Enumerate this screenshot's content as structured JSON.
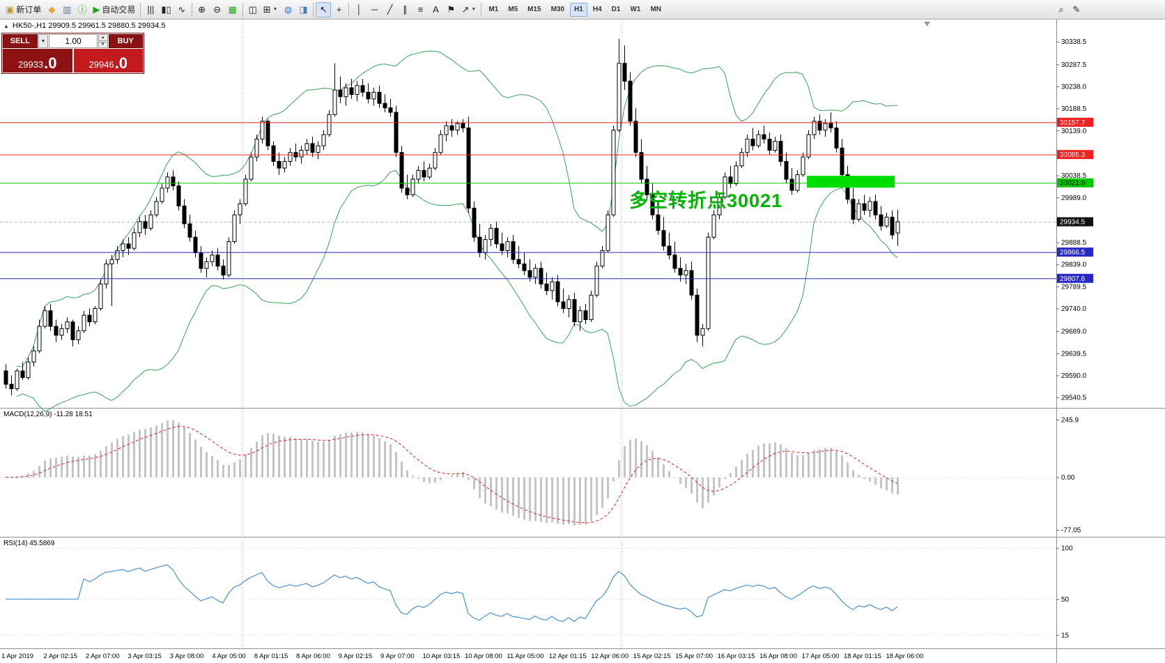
{
  "chart_header": {
    "symbol_info": "HK50-,H1 29909.5 29961.5 29880.5 29934.5"
  },
  "icons": {
    "panel_toggle": "▲",
    "dropdown": "▼",
    "spin_up": "▲",
    "spin_down": "▼"
  },
  "toolbar": {
    "items": [
      {
        "name": "new-order",
        "glyph": "▣",
        "color": "#c09433",
        "label": "新订单"
      },
      {
        "name": "favorites",
        "glyph": "◆",
        "color": "#e2a33a"
      },
      {
        "name": "market-watch",
        "glyph": "▥",
        "color": "#4a7ebb"
      },
      {
        "name": "data-window",
        "glyph": "ⓘ",
        "color": "#2e9e2e"
      },
      {
        "name": "autotrading",
        "glyph": "▶",
        "color": "#23a123",
        "label": "自动交易"
      },
      {
        "sep": true
      },
      {
        "name": "bar-chart",
        "glyph": "|||"
      },
      {
        "name": "candlestick-chart",
        "glyph": "▮▯"
      },
      {
        "name": "line-chart",
        "glyph": "∿"
      },
      {
        "sep": true
      },
      {
        "name": "zoom-in",
        "glyph": "⊕"
      },
      {
        "name": "zoom-out",
        "glyph": "⊖"
      },
      {
        "name": "auto-arrange",
        "glyph": "▦",
        "color": "#2e9e2e"
      },
      {
        "sep": true
      },
      {
        "name": "tile-windows",
        "glyph": "◫"
      },
      {
        "name": "new-chart",
        "glyph": "⊞",
        "arrow": true
      },
      {
        "name": "navigator",
        "glyph": "◍",
        "color": "#4a7ebb"
      },
      {
        "name": "terminal",
        "glyph": "◨",
        "color": "#4a7ebb"
      },
      {
        "sep": true
      },
      {
        "name": "cursor",
        "glyph": "↖",
        "active": true
      },
      {
        "name": "crosshair",
        "glyph": "+"
      },
      {
        "sep": true
      },
      {
        "name": "vertical-line",
        "glyph": "│"
      },
      {
        "name": "horizontal-line",
        "glyph": "─"
      },
      {
        "name": "trendline",
        "glyph": "╱"
      },
      {
        "name": "equidistant-channel",
        "glyph": "∥"
      },
      {
        "name": "fibonacci",
        "glyph": "≡"
      },
      {
        "name": "text",
        "glyph": "A"
      },
      {
        "name": "text-label",
        "glyph": "⚑"
      },
      {
        "name": "arrows",
        "glyph": "↗",
        "arrow": true
      },
      {
        "sep": true
      },
      {
        "tf": true
      },
      {
        "spacer": true
      },
      {
        "name": "search",
        "glyph": "⌕"
      },
      {
        "name": "edit",
        "glyph": "✎"
      }
    ],
    "timeframes": [
      "M1",
      "M5",
      "M15",
      "M30",
      "H1",
      "H4",
      "D1",
      "W1",
      "MN"
    ],
    "active_timeframe": "H1"
  },
  "trade_panel": {
    "sell_label": "SELL",
    "buy_label": "BUY",
    "volume": "1.00",
    "sell_price_main": "29933",
    "sell_price_frac": ".0",
    "buy_price_main": "29946",
    "buy_price_frac": ".0"
  },
  "annotation": {
    "text": "多空转折点30021",
    "color": "#00b400"
  },
  "indicators": {
    "macd": {
      "label": "MACD(12,26,9) -11.28 18.51",
      "axis_labels": [
        "245.9",
        "0.00",
        "-77.05"
      ],
      "params": {
        "fast": 12,
        "slow": 26,
        "signal": 9
      }
    },
    "rsi": {
      "label": "RSI(14) 45.5869",
      "period": 14,
      "axis_labels": [
        {
          "value": 100,
          "text": "100"
        },
        {
          "value": 50,
          "text": "50"
        },
        {
          "value": 15,
          "text": "15"
        }
      ]
    }
  },
  "colors": {
    "bull": "#ffffff",
    "bear": "#000000",
    "wick": "#000000",
    "bollinger": "#3aa05a",
    "macd_hist": "#c4c4c4",
    "macd_signal": "#e02020",
    "rsi_line": "#4a90d2",
    "current_price_badge": "#111111",
    "zone_green": "#00dd00",
    "annotation_green": "#00b400"
  },
  "chart_data": {
    "type": "candlestick",
    "symbol": "HK50-",
    "timeframe": "H1",
    "last_ohlc": {
      "open": 29909.5,
      "high": 29961.5,
      "low": 29880.5,
      "close": 29934.5
    },
    "current_price": 29934.5,
    "price_range": {
      "max": 30360,
      "min": 29525
    },
    "price_ticks": [
      30338.5,
      30287.5,
      30238.0,
      30188.5,
      30139.0,
      30038.5,
      29989.0,
      29888.5,
      29839.0,
      29789.5,
      29740.0,
      29689.0,
      29639.5,
      29590.0,
      29540.5
    ],
    "hlines": [
      {
        "price": 30157.7,
        "label": "30157.7",
        "color": "#f02020",
        "badge_text": "light"
      },
      {
        "price": 30085.3,
        "label": "30085.3",
        "color": "#f02020",
        "badge_text": "light"
      },
      {
        "price": 30021.9,
        "label": "30021.9",
        "color": "#00c800",
        "badge_text": "dark"
      },
      {
        "price": 29866.5,
        "label": "29866.5",
        "color": "#2828c8",
        "badge_text": "light"
      },
      {
        "price": 29807.6,
        "label": "29807.6",
        "color": "#2828c8",
        "badge_text": "light"
      }
    ],
    "green_zone": {
      "price": 30021.9,
      "from_index": 144,
      "to_index": 159
    },
    "period_separators": [
      42.5,
      110.5
    ],
    "bollinger": {
      "period": 20,
      "deviation": 2
    },
    "time_labels": [
      "1 Apr 2019",
      "2 Apr 02:15",
      "2 Apr 07:00",
      "3 Apr 03:15",
      "3 Apr 08:00",
      "4 Apr 05:00",
      "8 Apr 01:15",
      "8 Apr 06:00",
      "9 Apr 02:15",
      "9 Apr 07:00",
      "10 Apr 03:15",
      "10 Apr 08:00",
      "11 Apr 05:00",
      "12 Apr 01:15",
      "12 Apr 06:00",
      "15 Apr 02:15",
      "15 Apr 07:00",
      "16 Apr 03:15",
      "16 Apr 08:00",
      "17 Apr 05:00",
      "18 Apr 01:15",
      "18 Apr 06:00"
    ],
    "candles": [
      [
        29600,
        29615,
        29560,
        29570
      ],
      [
        29570,
        29590,
        29545,
        29560
      ],
      [
        29560,
        29605,
        29555,
        29600
      ],
      [
        29600,
        29620,
        29580,
        29585
      ],
      [
        29585,
        29630,
        29580,
        29620
      ],
      [
        29620,
        29655,
        29610,
        29645
      ],
      [
        29645,
        29715,
        29640,
        29700
      ],
      [
        29700,
        29745,
        29695,
        29735
      ],
      [
        29735,
        29750,
        29690,
        29700
      ],
      [
        29700,
        29715,
        29665,
        29680
      ],
      [
        29680,
        29705,
        29670,
        29695
      ],
      [
        29695,
        29720,
        29685,
        29710
      ],
      [
        29710,
        29715,
        29655,
        29670
      ],
      [
        29670,
        29700,
        29660,
        29690
      ],
      [
        29690,
        29735,
        29685,
        29725
      ],
      [
        29725,
        29740,
        29700,
        29710
      ],
      [
        29710,
        29745,
        29705,
        29740
      ],
      [
        29740,
        29805,
        29735,
        29795
      ],
      [
        29795,
        29850,
        29785,
        29840
      ],
      [
        29840,
        29860,
        29745,
        29850
      ],
      [
        29850,
        29880,
        29840,
        29870
      ],
      [
        29870,
        29895,
        29855,
        29885
      ],
      [
        29885,
        29900,
        29860,
        29875
      ],
      [
        29875,
        29920,
        29870,
        29910
      ],
      [
        29910,
        29945,
        29900,
        29935
      ],
      [
        29935,
        29950,
        29905,
        29920
      ],
      [
        29920,
        29960,
        29915,
        29950
      ],
      [
        29950,
        29990,
        29945,
        29980
      ],
      [
        29980,
        30020,
        29975,
        30010
      ],
      [
        30010,
        30045,
        30000,
        30035
      ],
      [
        30035,
        30050,
        30005,
        30015
      ],
      [
        30015,
        30025,
        29960,
        29970
      ],
      [
        29970,
        29985,
        29920,
        29930
      ],
      [
        29930,
        29950,
        29890,
        29900
      ],
      [
        29900,
        29915,
        29855,
        29865
      ],
      [
        29865,
        29880,
        29820,
        29830
      ],
      [
        29830,
        29855,
        29810,
        29845
      ],
      [
        29845,
        29870,
        29835,
        29860
      ],
      [
        29860,
        29875,
        29825,
        29835
      ],
      [
        29835,
        29850,
        29805,
        29815
      ],
      [
        29815,
        29900,
        29810,
        29890
      ],
      [
        29890,
        29960,
        29885,
        29950
      ],
      [
        29950,
        29985,
        29930,
        29975
      ],
      [
        29975,
        30040,
        29970,
        30030
      ],
      [
        30030,
        30090,
        30025,
        30080
      ],
      [
        30080,
        30130,
        30070,
        30120
      ],
      [
        30120,
        30170,
        30110,
        30160
      ],
      [
        30160,
        30165,
        30095,
        30105
      ],
      [
        30105,
        30115,
        30060,
        30070
      ],
      [
        30070,
        30090,
        30040,
        30055
      ],
      [
        30055,
        30080,
        30045,
        30070
      ],
      [
        30070,
        30100,
        30060,
        30090
      ],
      [
        30090,
        30110,
        30070,
        30080
      ],
      [
        30080,
        30105,
        30065,
        30095
      ],
      [
        30095,
        30120,
        30085,
        30110
      ],
      [
        30110,
        30125,
        30080,
        30090
      ],
      [
        30090,
        30115,
        30075,
        30105
      ],
      [
        30105,
        30140,
        30095,
        30130
      ],
      [
        30130,
        30185,
        30125,
        30175
      ],
      [
        30175,
        30290,
        30170,
        30230
      ],
      [
        30230,
        30260,
        30200,
        30215
      ],
      [
        30215,
        30245,
        30195,
        30235
      ],
      [
        30235,
        30255,
        30210,
        30220
      ],
      [
        30220,
        30250,
        30205,
        30240
      ],
      [
        30240,
        30255,
        30215,
        30225
      ],
      [
        30225,
        30245,
        30200,
        30210
      ],
      [
        30210,
        30235,
        30195,
        30225
      ],
      [
        30225,
        30240,
        30190,
        30200
      ],
      [
        30200,
        30220,
        30180,
        30190
      ],
      [
        30190,
        30210,
        30170,
        30180
      ],
      [
        30180,
        30195,
        30080,
        30090
      ],
      [
        30090,
        30105,
        30000,
        30010
      ],
      [
        30010,
        30040,
        29985,
        29995
      ],
      [
        29995,
        30040,
        29990,
        30030
      ],
      [
        30030,
        30060,
        30020,
        30050
      ],
      [
        30050,
        30070,
        30025,
        30035
      ],
      [
        30035,
        30065,
        30030,
        30055
      ],
      [
        30055,
        30100,
        30050,
        30090
      ],
      [
        30090,
        30140,
        30085,
        30130
      ],
      [
        30130,
        30160,
        30115,
        30150
      ],
      [
        30150,
        30165,
        30125,
        30140
      ],
      [
        30140,
        30160,
        30130,
        30155
      ],
      [
        30155,
        30165,
        30135,
        30145
      ],
      [
        30145,
        30170,
        29955,
        29965
      ],
      [
        29965,
        29980,
        29890,
        29900
      ],
      [
        29900,
        29930,
        29855,
        29865
      ],
      [
        29865,
        29905,
        29850,
        29895
      ],
      [
        29895,
        29930,
        29880,
        29920
      ],
      [
        29920,
        29935,
        29875,
        29885
      ],
      [
        29885,
        29910,
        29860,
        29870
      ],
      [
        29870,
        29900,
        29855,
        29890
      ],
      [
        29890,
        29905,
        29840,
        29850
      ],
      [
        29850,
        29880,
        29830,
        29840
      ],
      [
        29840,
        29865,
        29815,
        29825
      ],
      [
        29825,
        29850,
        29800,
        29810
      ],
      [
        29810,
        29840,
        29795,
        29830
      ],
      [
        29830,
        29845,
        29785,
        29795
      ],
      [
        29795,
        29820,
        29770,
        29780
      ],
      [
        29780,
        29810,
        29760,
        29800
      ],
      [
        29800,
        29815,
        29745,
        29755
      ],
      [
        29755,
        29785,
        29730,
        29740
      ],
      [
        29740,
        29770,
        29720,
        29760
      ],
      [
        29760,
        29775,
        29700,
        29710
      ],
      [
        29710,
        29745,
        29690,
        29735
      ],
      [
        29735,
        29750,
        29705,
        29715
      ],
      [
        29715,
        29780,
        29710,
        29770
      ],
      [
        29770,
        29845,
        29765,
        29835
      ],
      [
        29835,
        29880,
        29830,
        29870
      ],
      [
        29870,
        29960,
        29865,
        29950
      ],
      [
        29950,
        30150,
        29945,
        30140
      ],
      [
        30140,
        30345,
        30135,
        30290
      ],
      [
        30290,
        30330,
        30230,
        30250
      ],
      [
        30250,
        30270,
        30150,
        30160
      ],
      [
        30160,
        30190,
        30080,
        30090
      ],
      [
        30090,
        30120,
        30020,
        30030
      ],
      [
        30030,
        30060,
        29985,
        29995
      ],
      [
        29995,
        30020,
        29940,
        29950
      ],
      [
        29950,
        29975,
        29905,
        29915
      ],
      [
        29915,
        29945,
        29870,
        29880
      ],
      [
        29880,
        29910,
        29850,
        29860
      ],
      [
        29860,
        29890,
        29820,
        29830
      ],
      [
        29830,
        29855,
        29800,
        29815
      ],
      [
        29815,
        29840,
        29795,
        29825
      ],
      [
        29825,
        29845,
        29760,
        29770
      ],
      [
        29770,
        29785,
        29665,
        29680
      ],
      [
        29680,
        29705,
        29655,
        29695
      ],
      [
        29695,
        29910,
        29690,
        29900
      ],
      [
        29900,
        29960,
        29895,
        29950
      ],
      [
        29950,
        30000,
        29940,
        29990
      ],
      [
        29990,
        30045,
        29985,
        30035
      ],
      [
        30035,
        30060,
        30010,
        30020
      ],
      [
        30020,
        30070,
        30015,
        30060
      ],
      [
        30060,
        30100,
        30055,
        30090
      ],
      [
        30090,
        30130,
        30080,
        30120
      ],
      [
        30120,
        30145,
        30095,
        30105
      ],
      [
        30105,
        30140,
        30100,
        30130
      ],
      [
        30130,
        30150,
        30110,
        30120
      ],
      [
        30120,
        30135,
        30085,
        30095
      ],
      [
        30095,
        30125,
        30090,
        30115
      ],
      [
        30115,
        30130,
        30060,
        30070
      ],
      [
        30070,
        30090,
        30020,
        30030
      ],
      [
        30030,
        30055,
        29995,
        30005
      ],
      [
        30005,
        30050,
        30000,
        30040
      ],
      [
        30040,
        30090,
        30035,
        30080
      ],
      [
        30080,
        30140,
        30075,
        30130
      ],
      [
        30130,
        30170,
        30120,
        30160
      ],
      [
        30160,
        30175,
        30130,
        30140
      ],
      [
        30140,
        30165,
        30125,
        30155
      ],
      [
        30155,
        30180,
        30135,
        30145
      ],
      [
        30145,
        30160,
        30090,
        30100
      ],
      [
        30100,
        30120,
        30030,
        30040
      ],
      [
        30040,
        30060,
        29975,
        29985
      ],
      [
        29985,
        30010,
        29930,
        29940
      ],
      [
        29940,
        29985,
        29935,
        29975
      ],
      [
        29975,
        29995,
        29950,
        29960
      ],
      [
        29960,
        29990,
        29945,
        29980
      ],
      [
        29980,
        29995,
        29940,
        29950
      ],
      [
        29950,
        29970,
        29915,
        29925
      ],
      [
        29925,
        29955,
        29920,
        29945
      ],
      [
        29945,
        29960,
        29895,
        29905
      ],
      [
        29909.5,
        29961.5,
        29880.5,
        29934.5
      ]
    ]
  }
}
